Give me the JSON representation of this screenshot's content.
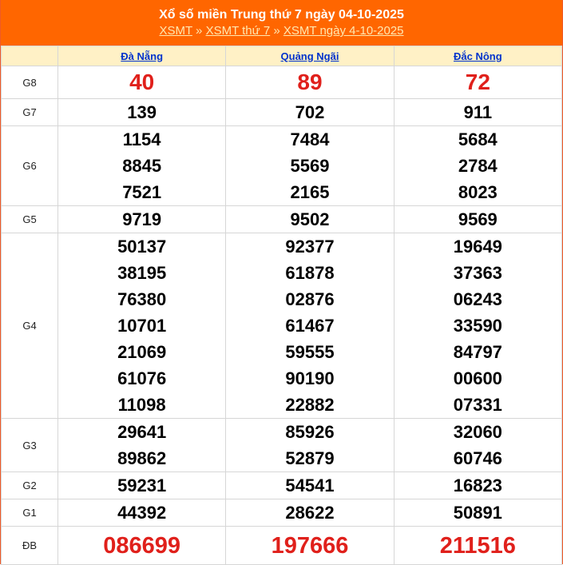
{
  "header": {
    "title": "Xổ số miền Trung thứ 7 ngày 04-10-2025",
    "breadcrumb": [
      "XSMT",
      "XSMT thứ 7",
      "XSMT ngày 4-10-2025"
    ],
    "separator": "»"
  },
  "provinces": [
    "Đà Nẵng",
    "Quảng Ngãi",
    "Đắc Nông"
  ],
  "colors": {
    "header": "#ff6600",
    "special": "#e0201b",
    "province_link": "#0033cc",
    "province_row": "#fff1c6"
  },
  "prizes": [
    {
      "label": "G8",
      "results": [
        [
          "40"
        ],
        [
          "89"
        ],
        [
          "72"
        ]
      ]
    },
    {
      "label": "G7",
      "results": [
        [
          "139"
        ],
        [
          "702"
        ],
        [
          "911"
        ]
      ]
    },
    {
      "label": "G6",
      "results": [
        [
          "1154",
          "8845",
          "7521"
        ],
        [
          "7484",
          "5569",
          "2165"
        ],
        [
          "5684",
          "2784",
          "8023"
        ]
      ]
    },
    {
      "label": "G5",
      "results": [
        [
          "9719"
        ],
        [
          "9502"
        ],
        [
          "9569"
        ]
      ]
    },
    {
      "label": "G4",
      "results": [
        [
          "50137",
          "38195",
          "76380",
          "10701",
          "21069",
          "61076",
          "11098"
        ],
        [
          "92377",
          "61878",
          "02876",
          "61467",
          "59555",
          "90190",
          "22882"
        ],
        [
          "19649",
          "37363",
          "06243",
          "33590",
          "84797",
          "00600",
          "07331"
        ]
      ]
    },
    {
      "label": "G3",
      "results": [
        [
          "29641",
          "89862"
        ],
        [
          "85926",
          "52879"
        ],
        [
          "32060",
          "60746"
        ]
      ]
    },
    {
      "label": "G2",
      "results": [
        [
          "59231"
        ],
        [
          "54541"
        ],
        [
          "16823"
        ]
      ]
    },
    {
      "label": "G1",
      "results": [
        [
          "44392"
        ],
        [
          "28622"
        ],
        [
          "50891"
        ]
      ]
    },
    {
      "label": "ĐB",
      "results": [
        [
          "086699"
        ],
        [
          "197666"
        ],
        [
          "211516"
        ]
      ]
    }
  ]
}
